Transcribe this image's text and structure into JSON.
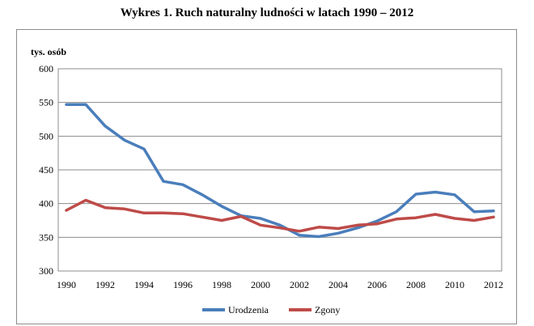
{
  "chart_data": {
    "type": "line",
    "title": "Wykres 1. Ruch naturalny ludności w latach 1990 – 2012",
    "ylabel": "tys. osób",
    "xlabel": "",
    "ylim": [
      300,
      600
    ],
    "yticks": [
      300,
      350,
      400,
      450,
      500,
      550,
      600
    ],
    "xlim": [
      1990,
      2012
    ],
    "xticks": [
      1990,
      1992,
      1994,
      1996,
      1998,
      2000,
      2002,
      2004,
      2006,
      2008,
      2010,
      2012
    ],
    "grid": true,
    "legend": "bottom",
    "x": [
      1990,
      1991,
      1992,
      1993,
      1994,
      1995,
      1996,
      1997,
      1998,
      1999,
      2000,
      2001,
      2002,
      2003,
      2004,
      2005,
      2006,
      2007,
      2008,
      2009,
      2010,
      2011,
      2012
    ],
    "series": [
      {
        "name": "Urodzenia",
        "color": "#4a7ebb",
        "values": [
          547,
          547,
          515,
          494,
          481,
          433,
          428,
          413,
          396,
          382,
          378,
          368,
          353,
          351,
          356,
          364,
          374,
          388,
          414,
          417,
          413,
          388,
          389
        ]
      },
      {
        "name": "Zgony",
        "color": "#be4b48",
        "values": [
          390,
          405,
          394,
          392,
          386,
          386,
          385,
          380,
          375,
          381,
          368,
          364,
          359,
          365,
          363,
          368,
          370,
          377,
          379,
          384,
          378,
          375,
          380
        ]
      }
    ]
  }
}
